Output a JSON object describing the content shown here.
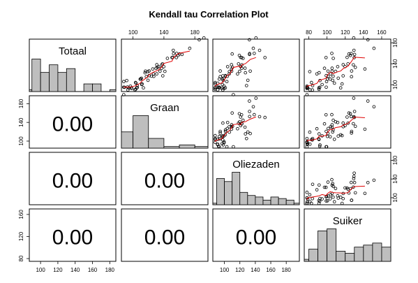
{
  "chart_data": {
    "type": "scatter-matrix",
    "title": "Kendall tau Correlation Plot",
    "variables": [
      "Totaal",
      "Graan",
      "Oliezaden",
      "Suiker"
    ],
    "x_ticks": {
      "Totaal": [
        100,
        120,
        140,
        160,
        180
      ],
      "Graan": [
        100,
        140,
        180
      ],
      "Oliezaden": [
        100,
        120,
        140,
        160,
        180
      ],
      "Suiker": [
        80,
        100,
        120,
        140,
        160
      ]
    },
    "y_ticks": {
      "Totaal": [
        100,
        140,
        180
      ],
      "Graan": [
        100,
        140,
        180
      ],
      "Oliezaden": [
        100,
        140,
        180
      ],
      "Suiker": [
        80,
        120,
        160
      ]
    },
    "ranges": {
      "Totaal": [
        87,
        187
      ],
      "Graan": [
        85,
        197
      ],
      "Oliezaden": [
        85,
        197
      ],
      "Suiker": [
        75,
        170
      ]
    },
    "histograms": {
      "Totaal": {
        "breaks": [
          80,
          90,
          100,
          110,
          120,
          130,
          140,
          150,
          160,
          170,
          180,
          190
        ],
        "counts": [
          1,
          17,
          10,
          14,
          10,
          12,
          0,
          4,
          4,
          0,
          1
        ]
      },
      "Graan": {
        "breaks": [
          80,
          100,
          120,
          140,
          160,
          180,
          200
        ],
        "counts": [
          10,
          20,
          6,
          1,
          2,
          1
        ]
      },
      "Oliezaden": {
        "breaks": [
          80,
          90,
          100,
          110,
          120,
          130,
          140,
          150,
          160,
          170,
          180,
          190,
          200
        ],
        "counts": [
          1,
          17,
          15,
          21,
          8,
          6,
          5,
          3,
          5,
          4,
          3,
          1
        ]
      },
      "Suiker": {
        "breaks": [
          70,
          80,
          90,
          100,
          110,
          120,
          130,
          140,
          150,
          160,
          170
        ],
        "counts": [
          1,
          6,
          15,
          16,
          5,
          4,
          7,
          8,
          9,
          7
        ]
      }
    },
    "correlations": {
      "Graan_Totaal": "0.00",
      "Oliezaden_Totaal": "0.00",
      "Oliezaden_Graan": "0.00",
      "Suiker_Totaal": "0.00",
      "Suiker_Graan": "0.00",
      "Suiker_Oliezaden": "0.00"
    },
    "scatter_style": {
      "point_color": "#000000",
      "smooth_color": "#e00000",
      "hist_fill": "#bebebe"
    }
  }
}
